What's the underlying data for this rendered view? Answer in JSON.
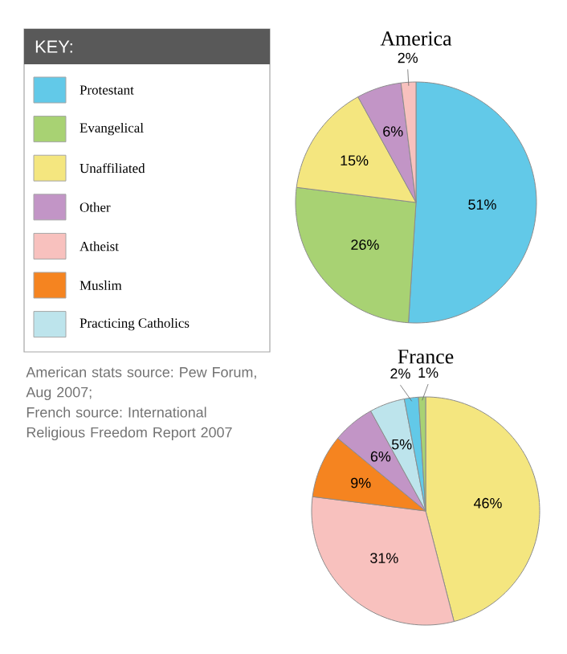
{
  "chart_data": [
    {
      "type": "pie",
      "title": "America",
      "categories": [
        "Protestant",
        "Evangelical",
        "Unaffiliated",
        "Other",
        "Atheist",
        "Muslim",
        "Practicing Catholics"
      ],
      "values": [
        51,
        26,
        15,
        6,
        2,
        null,
        null
      ],
      "colors": [
        "#62c9e8",
        "#a8d273",
        "#f4e67f",
        "#c295c6",
        "#f8c1be",
        "#f58420",
        "#bde4ec"
      ],
      "value_labels": [
        "51%",
        "26%",
        "15%",
        "6%",
        "2%",
        null,
        null
      ],
      "legend": "left",
      "legend_title": "KEY:",
      "annotations": [
        "American stats source: Pew Forum, Aug 2007;",
        "French source: International Religious Freedom Report 2007"
      ]
    },
    {
      "type": "pie",
      "title": "France",
      "categories": [
        null,
        null,
        null,
        null,
        null,
        null,
        null
      ],
      "values": [
        46,
        31,
        9,
        6,
        5,
        2,
        1
      ],
      "colors": [
        "#f4e67f",
        "#f8c1be",
        "#f58420",
        "#c295c6",
        "#bde4ec",
        "#62c9e8",
        "#a8d273"
      ],
      "value_labels": [
        "46%",
        "31%",
        "9%",
        "6%",
        "5%",
        "2%",
        "1%"
      ]
    }
  ]
}
